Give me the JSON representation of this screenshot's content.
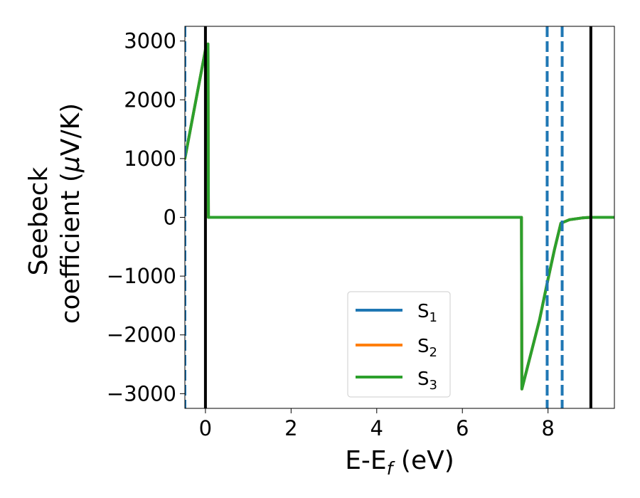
{
  "chart_data": {
    "type": "line",
    "xlabel": "E-E",
    "xlabel_subscript": "f",
    "xlabel_unit": " (eV)",
    "ylabel_line1": "Seebeck",
    "ylabel_line2": "coefficient  (",
    "ylabel_mu": "μ",
    "ylabel_unit": "V/K)",
    "xlim": [
      -0.48,
      9.55
    ],
    "ylim": [
      -3250,
      3250
    ],
    "xticks": [
      0,
      2,
      4,
      6,
      8
    ],
    "xtick_labels": [
      "0",
      "2",
      "4",
      "6",
      "8"
    ],
    "yticks": [
      3000,
      2000,
      1000,
      0,
      -1000,
      -2000,
      -3000
    ],
    "ytick_labels": [
      "3000",
      "2000",
      "1000",
      "0",
      "−1000",
      "−2000",
      "−3000"
    ],
    "grid": false,
    "legend_position": "bottom-center",
    "series": [
      {
        "name": "S",
        "name_subscript": "1",
        "color": "#1f77b4",
        "x": [
          -0.48,
          0.0,
          0.03,
          0.06,
          0.07,
          2.0,
          4.0,
          6.0,
          7.38,
          7.39,
          7.8,
          8.0,
          8.15,
          8.3,
          8.5,
          8.8,
          9.0,
          9.3,
          9.55
        ],
        "y": [
          1000,
          2850,
          2900,
          2950,
          0,
          0,
          0,
          0,
          0,
          -2920,
          -1750,
          -1050,
          -550,
          -100,
          -40,
          -10,
          0,
          0,
          0
        ]
      },
      {
        "name": "S",
        "name_subscript": "2",
        "color": "#ff7f0e",
        "x": [
          -0.48,
          0.0,
          0.03,
          0.06,
          0.07,
          2.0,
          4.0,
          6.0,
          7.38,
          7.39,
          7.8,
          8.0,
          8.15,
          8.3,
          8.5,
          8.8,
          9.0,
          9.3,
          9.55
        ],
        "y": [
          1000,
          2850,
          2900,
          2950,
          0,
          0,
          0,
          0,
          0,
          -2920,
          -1750,
          -1050,
          -550,
          -100,
          -40,
          -10,
          0,
          0,
          0
        ]
      },
      {
        "name": "S",
        "name_subscript": "3",
        "color": "#2ca02c",
        "x": [
          -0.48,
          0.0,
          0.03,
          0.06,
          0.07,
          2.0,
          4.0,
          6.0,
          7.38,
          7.39,
          7.8,
          8.0,
          8.15,
          8.3,
          8.5,
          8.8,
          9.0,
          9.3,
          9.55
        ],
        "y": [
          1000,
          2850,
          2900,
          2950,
          0,
          0,
          0,
          0,
          0,
          -2920,
          -1750,
          -1050,
          -550,
          -100,
          -40,
          -10,
          0,
          0,
          0
        ]
      }
    ],
    "vlines_solid": [
      0.0,
      9.0
    ],
    "vlines_dashed": [
      -0.48,
      7.98,
      8.33
    ],
    "vline_solid_color": "#000000",
    "vline_dashed_color": "#1f77b4"
  }
}
